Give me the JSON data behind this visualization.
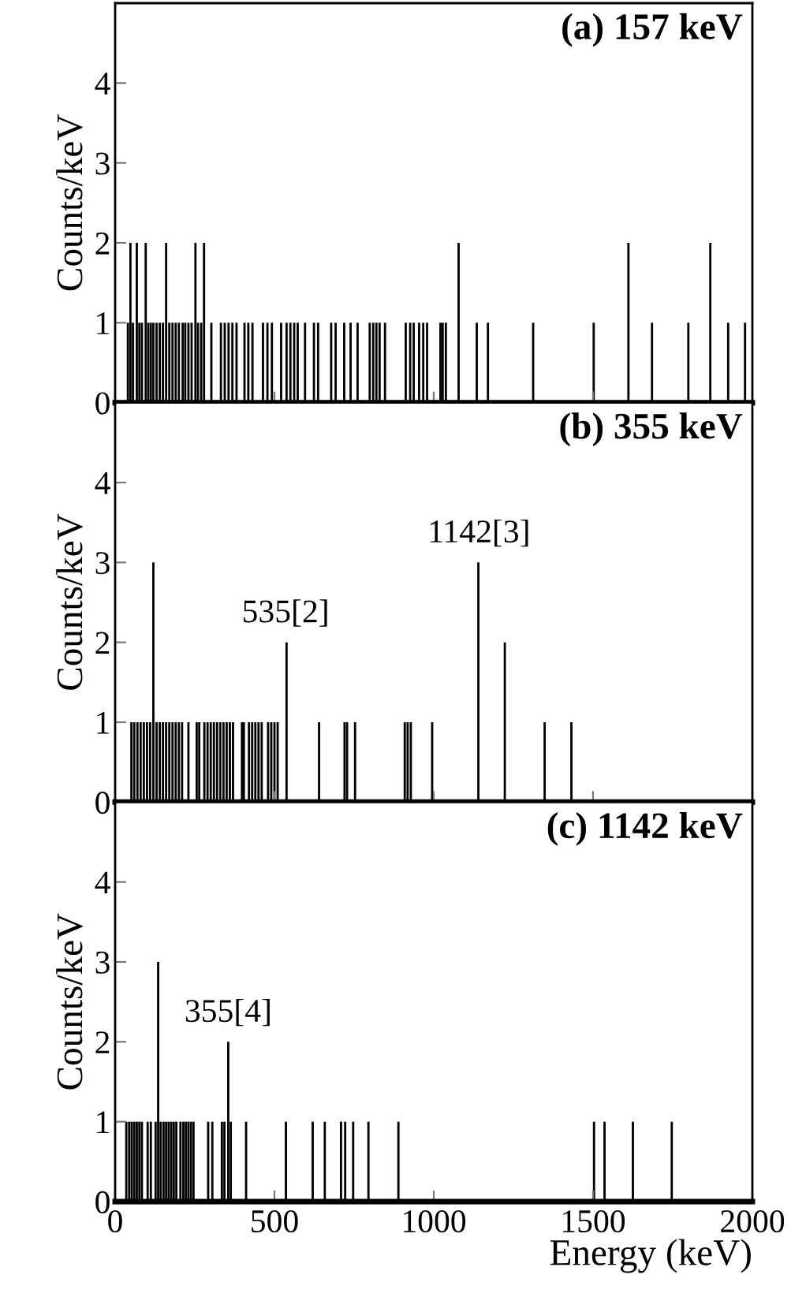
{
  "chart_data": [
    {
      "type": "bar",
      "title": "(a) 157 keV",
      "ylabel": "Counts/keV",
      "xlim": [
        0,
        2000
      ],
      "xticks": [
        0,
        500,
        1000,
        1500,
        2000
      ],
      "ylim": [
        0,
        5
      ],
      "yticks": [
        0,
        1,
        2,
        3,
        4
      ],
      "tick_labels": "y",
      "grid": false,
      "series": [
        {
          "color": "#000000",
          "x": [
            40,
            48,
            56,
            68,
            76,
            84,
            96,
            104,
            112,
            120,
            130,
            140,
            150,
            160,
            170,
            180,
            190,
            200,
            212,
            220,
            230,
            240,
            252,
            260,
            270,
            279,
            302,
            332,
            344,
            356,
            368,
            381,
            406,
            418,
            431,
            464,
            478,
            492,
            521,
            538,
            550,
            562,
            573,
            596,
            624,
            637,
            678,
            692,
            719,
            739,
            761,
            799,
            810,
            820,
            830,
            847,
            912,
            926,
            937,
            954,
            967,
            979,
            1021,
            1028,
            1038,
            1078,
            1135,
            1170,
            1312,
            1502,
            1611,
            1685,
            1799,
            1868,
            1924,
            1977
          ],
          "values": [
            1,
            2,
            1,
            2,
            1,
            1,
            2,
            1,
            1,
            1,
            1,
            1,
            1,
            2,
            1,
            1,
            1,
            1,
            1,
            1,
            1,
            1,
            2,
            1,
            1,
            2,
            1,
            1,
            1,
            1,
            1,
            1,
            1,
            1,
            1,
            1,
            1,
            1,
            1,
            1,
            1,
            1,
            1,
            1,
            1,
            1,
            1,
            1,
            1,
            1,
            1,
            1,
            1,
            1,
            1,
            1,
            1,
            1,
            1,
            1,
            1,
            1,
            1,
            1,
            1,
            2,
            1,
            1,
            1,
            1,
            2,
            1,
            1,
            2,
            1,
            1
          ]
        }
      ]
    },
    {
      "type": "bar",
      "title": "(b) 355 keV",
      "ylabel": "Counts/keV",
      "xlim": [
        0,
        2000
      ],
      "xticks": [
        0,
        500,
        1000,
        1500,
        2000
      ],
      "ylim": [
        0,
        5
      ],
      "yticks": [
        0,
        1,
        2,
        3,
        4
      ],
      "tick_labels": "y",
      "grid": false,
      "annotations": [
        {
          "text": "535[2]",
          "x": 535,
          "y": 2
        },
        {
          "text": "1142[3]",
          "x": 1142,
          "y": 3
        }
      ],
      "series": [
        {
          "color": "#000000",
          "x": [
            51,
            60,
            70,
            80,
            90,
            100,
            110,
            120,
            130,
            140,
            150,
            160,
            170,
            180,
            190,
            200,
            210,
            230,
            256,
            264,
            280,
            290,
            300,
            310,
            320,
            330,
            340,
            350,
            360,
            370,
            398,
            404,
            420,
            430,
            440,
            450,
            460,
            480,
            490,
            500,
            510,
            538,
            640,
            720,
            728,
            753,
            909,
            918,
            928,
            995,
            1140,
            1223,
            1348,
            1432
          ],
          "values": [
            1,
            1,
            1,
            1,
            1,
            1,
            1,
            3,
            1,
            1,
            1,
            1,
            1,
            1,
            1,
            1,
            1,
            1,
            1,
            1,
            1,
            1,
            1,
            1,
            1,
            1,
            1,
            1,
            1,
            1,
            1,
            1,
            1,
            1,
            1,
            1,
            1,
            1,
            1,
            1,
            1,
            2,
            1,
            1,
            1,
            1,
            1,
            1,
            1,
            1,
            3,
            2,
            1,
            1
          ]
        }
      ]
    },
    {
      "type": "bar",
      "title": "(c) 1142 keV",
      "ylabel": "Counts/keV",
      "xlabel": "Energy (keV)",
      "xlim": [
        0,
        2000
      ],
      "xticks": [
        0,
        500,
        1000,
        1500,
        2000
      ],
      "ylim": [
        0,
        5
      ],
      "yticks": [
        0,
        1,
        2,
        3,
        4
      ],
      "grid": false,
      "annotations": [
        {
          "text": "355[4]",
          "x": 355,
          "y": 2
        }
      ],
      "series": [
        {
          "color": "#000000",
          "x": [
            35,
            44,
            52,
            60,
            68,
            76,
            84,
            102,
            112,
            127,
            135,
            143,
            152,
            160,
            168,
            176,
            184,
            192,
            205,
            214,
            222,
            230,
            238,
            246,
            292,
            305,
            335,
            343,
            355,
            363,
            411,
            536,
            620,
            658,
            709,
            722,
            747,
            795,
            889,
            1503,
            1536,
            1625,
            1747
          ],
          "values": [
            1,
            1,
            1,
            1,
            1,
            1,
            1,
            1,
            1,
            1,
            3,
            1,
            1,
            1,
            1,
            1,
            1,
            1,
            1,
            1,
            1,
            1,
            1,
            1,
            1,
            1,
            1,
            1,
            2,
            1,
            1,
            1,
            1,
            1,
            1,
            1,
            1,
            1,
            1,
            1,
            1,
            1,
            1
          ]
        }
      ]
    }
  ]
}
